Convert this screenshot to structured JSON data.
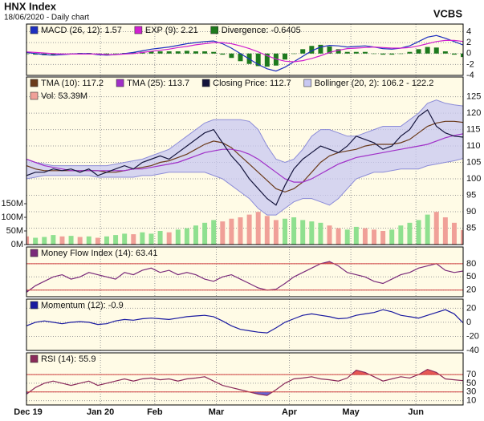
{
  "header": {
    "title": "HNX Index",
    "subtitle": "18/06/2020 - Daily chart",
    "source": "VCBS"
  },
  "chart_data": [
    {
      "type": "line",
      "ylim": [
        -4,
        5.4
      ],
      "yticks": [
        4,
        2,
        0,
        -2,
        -4
      ],
      "series": [
        {
          "name": "MACD (26, 12): 1.57",
          "color": "#1e2fc0",
          "values": [
            0.2,
            0,
            -0.2,
            -0.3,
            -0.2,
            -0.1,
            0,
            0,
            -0.2,
            -0.3,
            -0.2,
            0,
            0.2,
            0.5,
            0.8,
            1,
            1.2,
            1.5,
            1.8,
            2,
            2.2,
            2.3,
            1.8,
            1,
            0,
            -1,
            -2,
            -2.8,
            -3.2,
            -2.5,
            -1.5,
            -0.5,
            0.5,
            1.2,
            1.5,
            1.4,
            1.2,
            1.3,
            1.4,
            1.2,
            0.9,
            0.8,
            1,
            1.4,
            2.2,
            3,
            3.3,
            2.8,
            2.2,
            1.57
          ]
        },
        {
          "name": "EXP (9): 2.21",
          "color": "#d020d0",
          "values": [
            0.3,
            0.2,
            0.1,
            0,
            -0.1,
            -0.1,
            -0.1,
            -0.1,
            -0.1,
            -0.2,
            -0.2,
            -0.1,
            0,
            0.2,
            0.4,
            0.6,
            0.8,
            1.1,
            1.3,
            1.6,
            1.8,
            2,
            2,
            1.8,
            1.4,
            0.9,
            0.3,
            -0.4,
            -1,
            -1.4,
            -1.5,
            -1.3,
            -0.9,
            -0.4,
            0.2,
            0.6,
            0.9,
            1,
            1.1,
            1.2,
            1.1,
            1,
            1,
            1.1,
            1.4,
            1.8,
            2.2,
            2.4,
            2.4,
            2.21
          ]
        },
        {
          "name": "Divergence: -0.6405",
          "type": "bar",
          "color": "#1e7a1e",
          "values": [
            -0.1,
            -0.2,
            -0.3,
            -0.3,
            -0.1,
            0,
            0.1,
            0.1,
            -0.1,
            -0.1,
            0,
            0.1,
            0.2,
            0.3,
            0.4,
            0.4,
            0.4,
            0.4,
            0.5,
            0.4,
            0.4,
            0.3,
            -0.2,
            -0.8,
            -1.4,
            -1.9,
            -2.3,
            -2.4,
            -2.2,
            -1.1,
            0,
            0.8,
            1.4,
            1.6,
            1.3,
            0.8,
            0.3,
            0.3,
            0.3,
            0,
            -0.2,
            -0.2,
            0,
            0.3,
            0.8,
            1.2,
            1.1,
            0.4,
            -0.2,
            -0.6405
          ]
        }
      ]
    },
    {
      "type": "line",
      "ylim": [
        80,
        131
      ],
      "yticks": [
        125,
        120,
        115,
        110,
        105,
        100,
        95,
        90,
        85
      ],
      "y2lim": [
        0,
        615000000
      ],
      "y2ticks": [
        {
          "value": 150000000,
          "label": "150M"
        },
        {
          "value": 100000000,
          "label": "100M"
        },
        {
          "value": 50000000,
          "label": "50M"
        },
        {
          "value": 0,
          "label": "0M"
        }
      ],
      "series": [
        {
          "name": "TMA (10): 117.2",
          "color": "#6b3a1a",
          "values": [
            104,
            103,
            102.5,
            102.5,
            102.5,
            102.5,
            102.5,
            102.5,
            102.5,
            102,
            102,
            102.5,
            103,
            103.5,
            104,
            105,
            105.5,
            106.5,
            107.5,
            109,
            110.5,
            111.5,
            111,
            109.5,
            107,
            104.5,
            102,
            99.5,
            97,
            96,
            97,
            99,
            102,
            105,
            107,
            108,
            108.5,
            109,
            110,
            110.5,
            110.5,
            110.5,
            111,
            112,
            114,
            116,
            117,
            117.5,
            117.5,
            117.2
          ]
        },
        {
          "name": "TMA (25): 113.7",
          "color": "#a030c8",
          "values": [
            106,
            105,
            104,
            103.5,
            103,
            102.5,
            102.5,
            102.5,
            102.5,
            102.5,
            102.5,
            102.5,
            103,
            103,
            103.5,
            104,
            104.5,
            105,
            106,
            107,
            108,
            108.5,
            109,
            109,
            108.5,
            107.5,
            106,
            104,
            102,
            100,
            99,
            99,
            100,
            101.5,
            103,
            104.5,
            105.5,
            106.5,
            107,
            107.5,
            108,
            108.5,
            109,
            109.5,
            110,
            110.5,
            111.5,
            112.5,
            113.2,
            113.7
          ]
        },
        {
          "name": "Closing Price: 112.7",
          "color": "#14143c",
          "values": [
            101,
            102,
            102,
            103,
            102.5,
            103,
            102,
            103,
            101,
            102,
            103,
            104,
            103,
            105,
            106,
            107,
            106,
            108,
            110,
            112,
            114,
            115,
            111,
            107,
            104,
            100,
            97,
            94,
            92,
            98,
            103,
            106,
            108,
            110,
            109,
            108,
            110,
            113,
            112,
            111,
            109,
            110,
            113,
            115,
            119,
            121,
            116,
            114,
            113,
            112.7
          ]
        },
        {
          "name": "Bollinger (20, 2): 106.2 - 122.2",
          "type": "band",
          "color": "#c8c8f2",
          "line_color": "#8c8cd8",
          "upper": [
            106,
            105,
            104.5,
            104,
            104,
            104,
            104,
            104,
            104,
            104,
            104.5,
            105,
            105.5,
            106,
            107,
            108,
            109,
            111,
            113,
            115,
            117,
            118,
            118,
            118,
            118,
            117.5,
            115,
            110,
            106,
            105,
            106,
            109,
            113,
            115,
            115,
            114,
            113,
            113,
            114,
            115,
            116,
            116,
            116,
            118,
            120,
            123,
            124,
            123,
            122.5,
            122.2
          ],
          "lower": [
            100,
            100.5,
            101,
            101,
            101,
            101,
            101,
            101,
            100.5,
            100.5,
            100.5,
            100.5,
            100.5,
            101,
            101,
            101.5,
            102,
            102,
            102,
            102,
            102,
            101,
            100,
            98,
            96,
            94,
            91,
            89,
            89,
            91,
            93,
            94,
            94,
            93,
            92,
            94,
            97,
            100,
            101,
            102,
            102,
            102.5,
            103,
            103,
            103,
            104,
            104.5,
            105,
            105.5,
            106.2
          ]
        },
        {
          "name": "Vol: 53.39M",
          "type": "bar",
          "axis": "y2",
          "color": "#f0a098",
          "up_color": "#8fe08f",
          "values": [
            30000000,
            25000000,
            28000000,
            35000000,
            30000000,
            32000000,
            28000000,
            30000000,
            25000000,
            30000000,
            35000000,
            40000000,
            38000000,
            45000000,
            40000000,
            50000000,
            45000000,
            55000000,
            60000000,
            70000000,
            80000000,
            90000000,
            85000000,
            95000000,
            100000000,
            110000000,
            120000000,
            105000000,
            90000000,
            95000000,
            100000000,
            90000000,
            85000000,
            80000000,
            70000000,
            60000000,
            55000000,
            65000000,
            60000000,
            55000000,
            50000000,
            55000000,
            70000000,
            80000000,
            90000000,
            110000000,
            120000000,
            100000000,
            80000000,
            53390000
          ]
        }
      ]
    },
    {
      "type": "line",
      "ylim": [
        5,
        118
      ],
      "yticks": [
        80,
        50,
        20
      ],
      "levels": [
        80,
        20
      ],
      "level_color": "#d04040",
      "level_fills": [
        "#d04040",
        "#4040d0"
      ],
      "series": [
        {
          "name": "Money Flow Index (14): 63.41",
          "color": "#7a2a7a",
          "values": [
            15,
            30,
            40,
            50,
            55,
            45,
            50,
            60,
            55,
            50,
            45,
            60,
            55,
            65,
            70,
            60,
            65,
            55,
            60,
            55,
            45,
            40,
            50,
            55,
            45,
            35,
            25,
            20,
            22,
            35,
            50,
            60,
            70,
            80,
            85,
            75,
            60,
            55,
            50,
            40,
            35,
            45,
            55,
            60,
            70,
            75,
            80,
            65,
            60,
            63.41
          ]
        }
      ]
    },
    {
      "type": "line",
      "ylim": [
        -40,
        33
      ],
      "yticks": [
        20,
        0,
        -20,
        -40
      ],
      "series": [
        {
          "name": "Momentum (12): -0.9",
          "color": "#1a1aa0",
          "values": [
            -5,
            0,
            2,
            0,
            -2,
            0,
            1,
            0,
            -3,
            -2,
            2,
            4,
            3,
            5,
            6,
            5,
            4,
            6,
            8,
            9,
            10,
            8,
            2,
            -5,
            -10,
            -12,
            -14,
            -15,
            -8,
            0,
            5,
            10,
            12,
            10,
            8,
            5,
            6,
            10,
            12,
            14,
            18,
            15,
            10,
            8,
            6,
            10,
            14,
            18,
            12,
            -0.9
          ]
        }
      ]
    },
    {
      "type": "line",
      "ylim": [
        0,
        120
      ],
      "yticks": [
        70,
        50,
        30,
        10
      ],
      "levels": [
        70,
        30
      ],
      "level_color": "#d04040",
      "level_fills": [
        "#e03030",
        "#4040d0"
      ],
      "xlim": [
        0,
        49
      ],
      "xticks": [
        {
          "value": 0,
          "label": "Dec 19"
        },
        {
          "value": 8.3,
          "label": "Jan 20"
        },
        {
          "value": 14.4,
          "label": "Feb"
        },
        {
          "value": 21.3,
          "label": "Mar"
        },
        {
          "value": 29.5,
          "label": "Apr"
        },
        {
          "value": 36.4,
          "label": "May"
        },
        {
          "value": 43.7,
          "label": "Jun"
        }
      ],
      "series": [
        {
          "name": "RSI (14): 55.9",
          "color": "#8a2a5a",
          "values": [
            25,
            40,
            50,
            55,
            50,
            45,
            50,
            55,
            45,
            50,
            55,
            60,
            55,
            60,
            62,
            58,
            60,
            55,
            60,
            62,
            65,
            55,
            45,
            40,
            35,
            30,
            25,
            22,
            35,
            50,
            60,
            62,
            65,
            60,
            58,
            55,
            62,
            80,
            75,
            65,
            55,
            60,
            65,
            62,
            70,
            82,
            75,
            60,
            58,
            55.9
          ]
        }
      ]
    }
  ]
}
